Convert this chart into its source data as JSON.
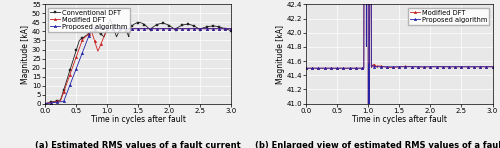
{
  "left": {
    "caption": "(a) Estimated RMS values of a fault current",
    "xlabel": "Time in cycles after fault",
    "ylabel": "Magnitude [kA]",
    "xlim": [
      0.0,
      3.0
    ],
    "ylim": [
      0,
      55
    ],
    "yticks": [
      0,
      5,
      10,
      15,
      20,
      25,
      30,
      35,
      40,
      45,
      50,
      55
    ],
    "xticks": [
      0.0,
      0.5,
      1.0,
      1.5,
      2.0,
      2.5,
      3.0
    ],
    "legend_entries": [
      "Conventional DFT",
      "Modified DFT",
      "Proposed algorithm"
    ],
    "colors": {
      "conventional": "#222222",
      "modified": "#cc2222",
      "proposed": "#2222aa"
    },
    "markers": {
      "conventional": "s",
      "modified": "^",
      "proposed": "^"
    }
  },
  "right": {
    "caption": "(b) Enlarged view of estimated RMS values of a fault current",
    "xlabel": "Time in cycles after fault",
    "ylabel": "Magnitude [kA]",
    "xlim": [
      0.0,
      3.0
    ],
    "ylim": [
      41.0,
      42.4
    ],
    "yticks": [
      41.0,
      41.2,
      41.4,
      41.6,
      41.8,
      42.0,
      42.2,
      42.4
    ],
    "xticks": [
      0.0,
      0.5,
      1.0,
      1.5,
      2.0,
      2.5,
      3.0
    ],
    "legend_entries": [
      "Modified DFT",
      "Proposed algorithm"
    ],
    "colors": {
      "modified": "#cc2222",
      "proposed": "#2222aa"
    },
    "markers": {
      "modified": "^",
      "proposed": "^"
    }
  },
  "background_color": "#e8e8e8",
  "grid_color": "#ffffff",
  "fig_background": "#f0f0f0",
  "caption_fontsize": 6.0,
  "label_fontsize": 5.5,
  "tick_fontsize": 5.0,
  "legend_fontsize": 4.8
}
